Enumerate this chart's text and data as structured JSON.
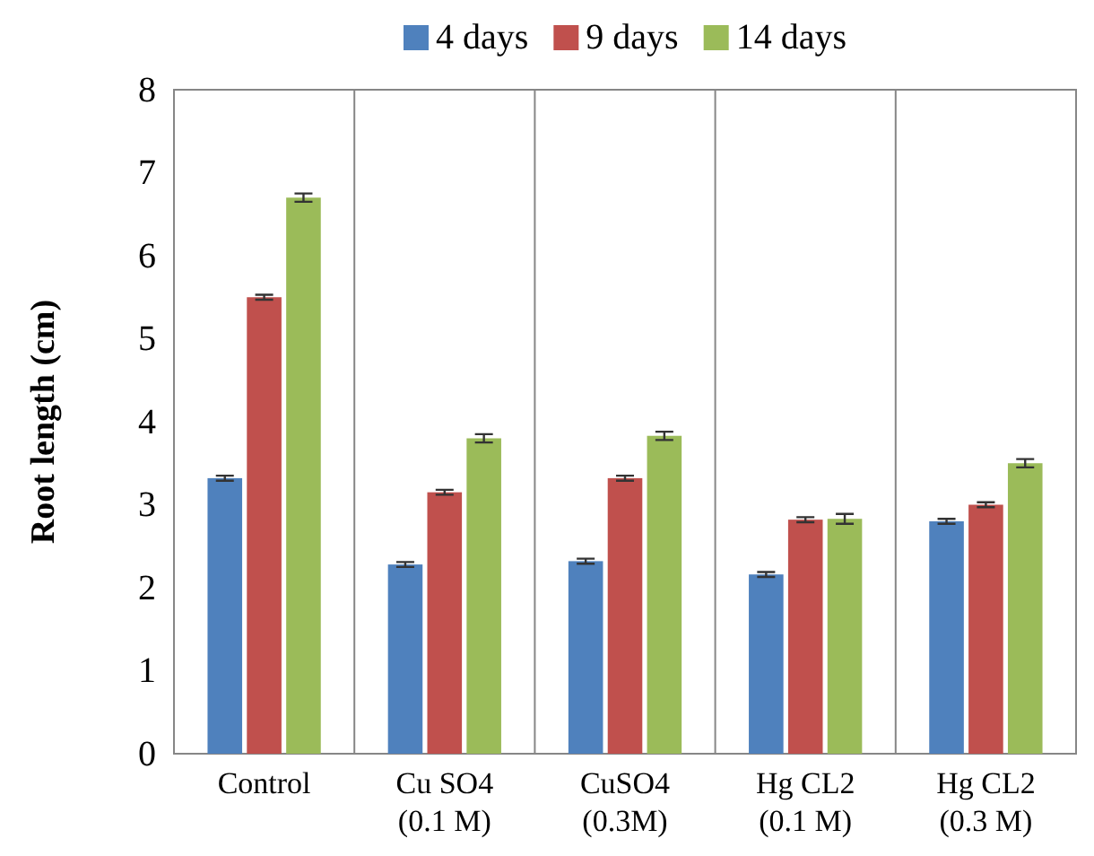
{
  "chart_data": {
    "type": "bar",
    "ylabel": "Root length (cm)",
    "categories": [
      "Control",
      "Cu SO4\n(0.1 M)",
      "CuSO4\n(0.3M)",
      "Hg CL2\n(0.1 M)",
      "Hg CL2\n(0.3 M)"
    ],
    "series": [
      {
        "name": "4 days",
        "color": "#4f81bd",
        "values": [
          3.32,
          2.28,
          2.32,
          2.16,
          2.8
        ],
        "errors": [
          0.03,
          0.03,
          0.03,
          0.03,
          0.03
        ]
      },
      {
        "name": "9 days",
        "color": "#c0504d",
        "values": [
          5.5,
          3.15,
          3.32,
          2.82,
          3.0
        ],
        "errors": [
          0.03,
          0.03,
          0.03,
          0.03,
          0.03
        ]
      },
      {
        "name": "14 days",
        "color": "#9bbb59",
        "values": [
          6.7,
          3.8,
          3.83,
          2.83,
          3.5
        ],
        "errors": [
          0.05,
          0.05,
          0.05,
          0.06,
          0.05
        ]
      }
    ],
    "ylim": [
      0,
      8
    ],
    "yticks": [
      0,
      1,
      2,
      3,
      4,
      5,
      6,
      7,
      8
    ],
    "grid": false,
    "legend": "top"
  }
}
